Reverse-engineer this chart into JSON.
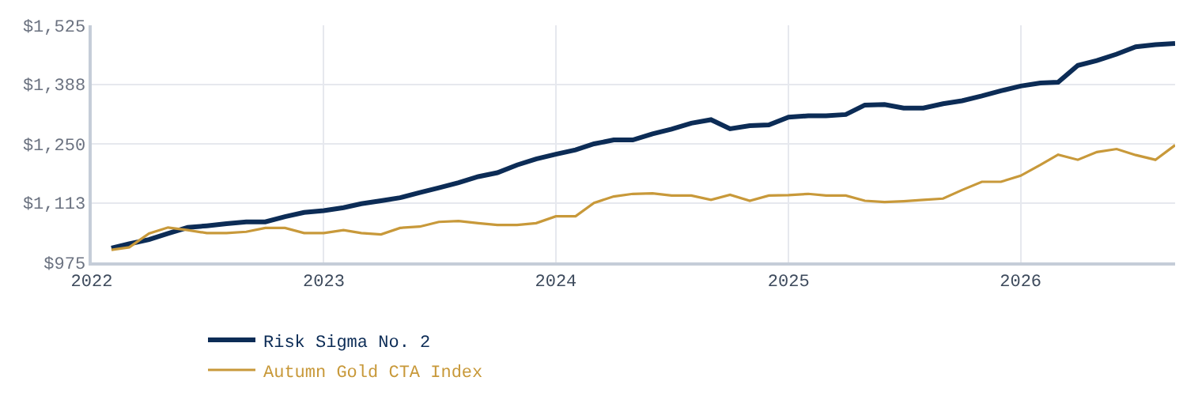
{
  "chart_data": {
    "type": "line",
    "x": [
      "2022-02",
      "2022-03",
      "2022-04",
      "2022-05",
      "2022-06",
      "2022-07",
      "2022-08",
      "2022-09",
      "2022-10",
      "2022-11",
      "2022-12",
      "2023-01",
      "2023-02",
      "2023-03",
      "2023-04",
      "2023-05",
      "2023-06",
      "2023-07",
      "2023-08",
      "2023-09",
      "2023-10",
      "2023-11",
      "2023-12",
      "2024-01",
      "2024-02",
      "2024-03",
      "2024-04",
      "2024-05",
      "2024-06",
      "2024-07",
      "2024-08",
      "2024-09",
      "2024-10",
      "2024-11",
      "2024-12",
      "2025-01",
      "2025-02",
      "2025-03",
      "2025-04",
      "2025-05",
      "2025-06",
      "2025-07",
      "2025-08",
      "2025-09",
      "2025-10",
      "2025-11",
      "2025-12",
      "2026-01",
      "2026-02",
      "2026-03",
      "2026-04",
      "2026-05",
      "2026-06",
      "2026-07",
      "2026-08",
      "2026-09"
    ],
    "series": [
      {
        "name": "Risk Sigma No. 2",
        "color": "#0c2c56",
        "values": [
          1008,
          1018,
          1028,
          1042,
          1056,
          1060,
          1065,
          1069,
          1069,
          1081,
          1091,
          1095,
          1102,
          1111,
          1118,
          1125,
          1137,
          1148,
          1160,
          1174,
          1183,
          1201,
          1215,
          1226,
          1236,
          1250,
          1259,
          1259,
          1273,
          1284,
          1298,
          1306,
          1285,
          1292,
          1294,
          1312,
          1315,
          1315,
          1318,
          1340,
          1341,
          1333,
          1333,
          1343,
          1350,
          1361,
          1373,
          1384,
          1391,
          1393,
          1432,
          1443,
          1458,
          1475,
          1480,
          1483
        ]
      },
      {
        "name": "Autumn Gold CTA Index",
        "color": "#c8993a",
        "values": [
          1004,
          1010,
          1042,
          1056,
          1050,
          1043,
          1043,
          1046,
          1055,
          1055,
          1043,
          1043,
          1050,
          1043,
          1040,
          1055,
          1058,
          1069,
          1071,
          1066,
          1062,
          1062,
          1066,
          1082,
          1082,
          1113,
          1128,
          1134,
          1135,
          1130,
          1130,
          1120,
          1132,
          1118,
          1130,
          1131,
          1134,
          1130,
          1130,
          1118,
          1115,
          1117,
          1120,
          1123,
          1143,
          1162,
          1162,
          1176,
          1201,
          1225,
          1213,
          1231,
          1238,
          1224,
          1213,
          1247
        ]
      }
    ],
    "xlim": [
      "2022-01",
      "2026-09"
    ],
    "xticks": [
      {
        "value": "2022-01-01",
        "label": "2022"
      },
      {
        "value": "2023-01-01",
        "label": "2023"
      },
      {
        "value": "2024-01-01",
        "label": "2024"
      },
      {
        "value": "2025-01-01",
        "label": "2025"
      },
      {
        "value": "2026-01-01",
        "label": "2026"
      }
    ],
    "ylim": [
      975,
      1525
    ],
    "yticks": [
      {
        "value": 975,
        "label": "$975"
      },
      {
        "value": 1113,
        "label": "$1,113"
      },
      {
        "value": 1250,
        "label": "$1,250"
      },
      {
        "value": 1388,
        "label": "$1,388"
      },
      {
        "value": 1525,
        "label": "$1,525"
      }
    ],
    "grid": true,
    "legend": "bottom",
    "marker": "none",
    "line_style": "solid"
  }
}
